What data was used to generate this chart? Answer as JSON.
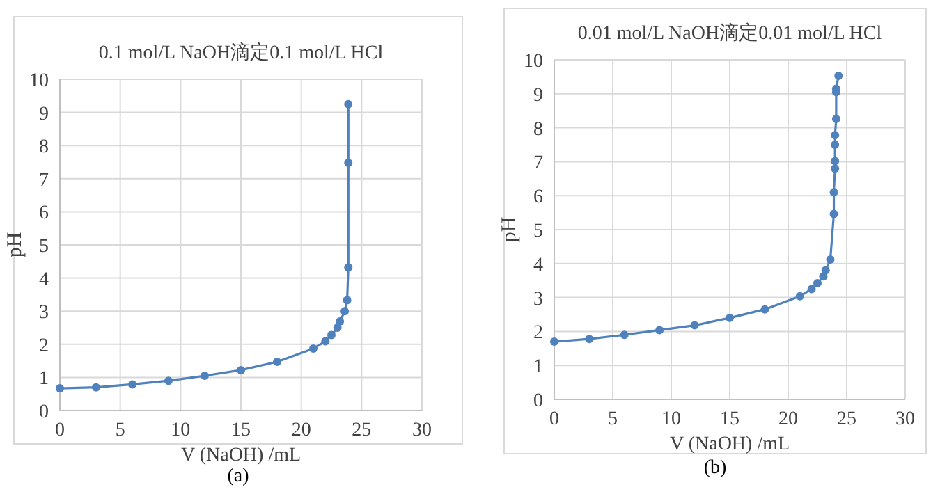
{
  "chart_data": [
    {
      "type": "line",
      "title": "0.1 mol/L NaOH滴定0.1 mol/L HCl",
      "xlabel": "V (NaOH) /mL",
      "ylabel": "pH",
      "x": [
        0,
        3,
        6,
        9,
        12,
        15,
        18,
        21,
        22,
        22.5,
        23,
        23.2,
        23.6,
        23.8,
        23.9,
        23.9,
        23.9
      ],
      "series": [
        {
          "color": "#4f81bd",
          "values": [
            0.67,
            0.7,
            0.79,
            0.9,
            1.05,
            1.22,
            1.47,
            1.87,
            2.09,
            2.28,
            2.5,
            2.69,
            3.0,
            3.33,
            4.32,
            7.48,
            9.25
          ]
        }
      ],
      "xlim": [
        0,
        30
      ],
      "ylim": [
        0,
        10
      ],
      "xticks": [
        0,
        5,
        10,
        15,
        20,
        25,
        30
      ],
      "yticks": [
        0,
        1,
        2,
        3,
        4,
        5,
        6,
        7,
        8,
        9,
        10
      ],
      "grid": true,
      "marker": "circle",
      "annotations": [
        "(a)"
      ]
    },
    {
      "type": "line",
      "title": "0.01 mol/L NaOH滴定0.01 mol/L HCl",
      "xlabel": "V (NaOH) /mL",
      "ylabel": "pH",
      "x": [
        0,
        3,
        6,
        9,
        12,
        15,
        18,
        21,
        22,
        22.5,
        23,
        23.2,
        23.6,
        23.9,
        23.9,
        24.0,
        24.0,
        24.0,
        24.0,
        24.1,
        24.1,
        24.1,
        24.3
      ],
      "series": [
        {
          "color": "#4f81bd",
          "values": [
            1.7,
            1.78,
            1.9,
            2.04,
            2.18,
            2.4,
            2.65,
            3.04,
            3.25,
            3.42,
            3.62,
            3.8,
            4.12,
            5.46,
            6.1,
            6.8,
            7.02,
            7.5,
            7.78,
            8.26,
            9.05,
            9.15,
            9.53
          ]
        }
      ],
      "xlim": [
        0,
        30
      ],
      "ylim": [
        0,
        10
      ],
      "xticks": [
        0,
        5,
        10,
        15,
        20,
        25,
        30
      ],
      "yticks": [
        0,
        1,
        2,
        3,
        4,
        5,
        6,
        7,
        8,
        9,
        10
      ],
      "grid": true,
      "marker": "circle",
      "annotations": [
        "(b)"
      ]
    }
  ]
}
